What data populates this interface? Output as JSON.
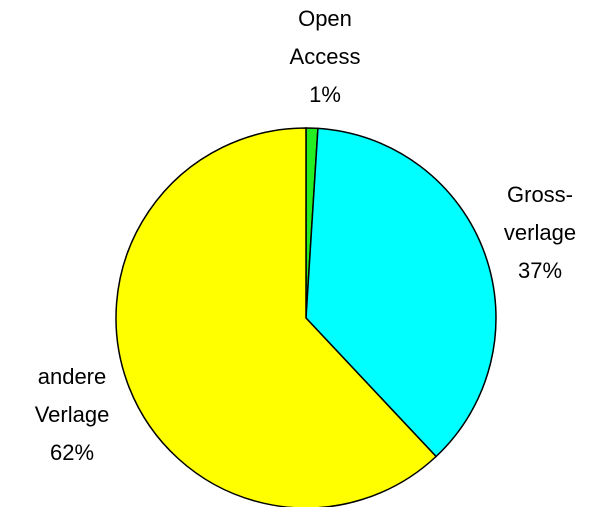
{
  "chart_data": {
    "type": "pie",
    "categories": [
      [
        "Open",
        "Access"
      ],
      [
        "Gross-",
        "verlage"
      ],
      [
        "andere",
        "Verlage"
      ]
    ],
    "values": [
      1,
      37,
      62
    ],
    "value_labels": [
      "1%",
      "37%",
      "62%"
    ],
    "colors": [
      "#22ee22",
      "#00ffff",
      "#ffff00"
    ]
  }
}
